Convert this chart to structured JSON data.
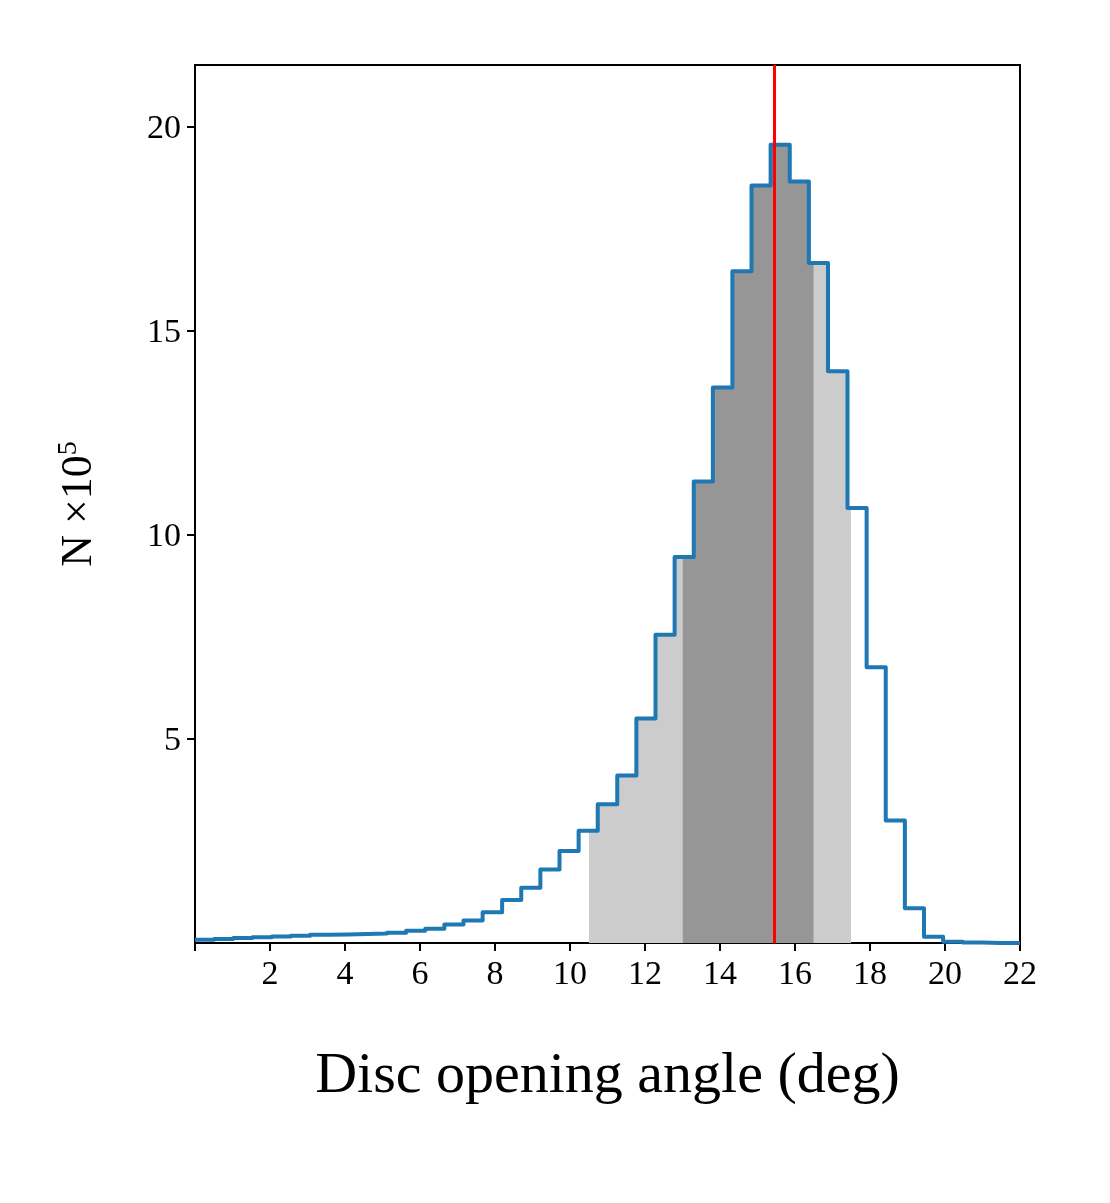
{
  "chart_data": {
    "type": "histogram",
    "xlabel": "Disc opening angle (deg)",
    "ylabel": "N ×10$^{5}$",
    "bins": [
      0,
      0.51,
      1.02,
      1.53,
      2.05,
      2.56,
      3.07,
      3.58,
      4.09,
      4.6,
      5.12,
      5.63,
      6.14,
      6.65,
      7.16,
      7.67,
      8.19,
      8.7,
      9.21,
      9.72,
      10.23,
      10.74,
      11.26,
      11.77,
      12.28,
      12.79,
      13.3,
      13.81,
      14.33,
      14.84,
      15.35,
      15.86,
      16.37,
      16.88,
      17.4,
      17.91,
      18.42,
      18.93,
      19.44,
      19.95,
      20.47,
      20.98,
      21.49,
      22
    ],
    "values": [
      0.08,
      0.1,
      0.12,
      0.14,
      0.16,
      0.18,
      0.2,
      0.21,
      0.22,
      0.23,
      0.25,
      0.3,
      0.35,
      0.45,
      0.55,
      0.75,
      1.05,
      1.35,
      1.8,
      2.25,
      2.75,
      3.4,
      4.1,
      5.5,
      7.55,
      9.45,
      11.3,
      13.6,
      16.45,
      18.55,
      19.55,
      18.65,
      16.65,
      14,
      10.65,
      6.75,
      3,
      0.85,
      0.15,
      0.03,
      0.01,
      0,
      0
    ],
    "color": "#1f77b4",
    "xlim": [
      0,
      22
    ],
    "ylim": [
      0,
      21.5
    ],
    "xticks": [
      {
        "value": 0,
        "label": null
      },
      2,
      4,
      6,
      8,
      10,
      12,
      14,
      16,
      18,
      20,
      22
    ],
    "yticks": [
      5,
      10,
      15,
      20
    ],
    "bands": [
      {
        "axis": "x",
        "from": 10.5,
        "to": 17.5,
        "color": "#cccccc"
      },
      {
        "axis": "x",
        "from": 13,
        "to": 16.5,
        "color": "#969696"
      }
    ],
    "ref_lines": [
      {
        "axis": "x",
        "value": 15.45,
        "color": "#ff0000"
      }
    ],
    "grid": false
  }
}
